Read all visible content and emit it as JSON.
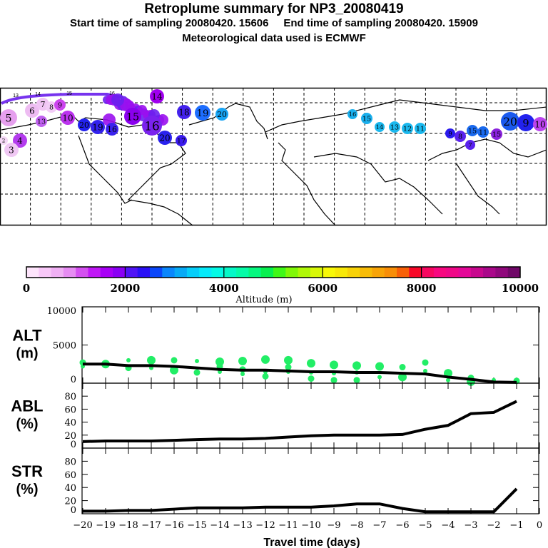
{
  "header": {
    "title": "Retroplume summary for NP3_20080419",
    "subtitle": "Start time of sampling 20080420. 15606     End time of sampling 20080420. 15909",
    "met_line": "Meteorological data used is ECMWF"
  },
  "map": {
    "markers": [
      {
        "label": "5",
        "color": "#e6a0ee"
      },
      {
        "label": "6",
        "color": "#eebcf2"
      },
      {
        "label": "7",
        "color": "#f0c4f4"
      },
      {
        "label": "8",
        "color": "#f2ccf6"
      },
      {
        "label": "9",
        "color": "#cc44ee"
      },
      {
        "label": "10",
        "color": "#bb33ee"
      },
      {
        "label": "4",
        "color": "#b43cee"
      },
      {
        "label": "3",
        "color": "#f0c8f4"
      },
      {
        "label": "2",
        "color": "#f4d8f6"
      },
      {
        "label": "13",
        "color": "#c060f0"
      },
      {
        "label": "14",
        "color": "#a000ee"
      },
      {
        "label": "18",
        "color": "#4422ee"
      },
      {
        "label": "19",
        "color": "#1e6eff"
      },
      {
        "label": "20",
        "color": "#18a4f4"
      },
      {
        "label": "20",
        "color": "#2222ee"
      },
      {
        "label": "19",
        "color": "#3322ee"
      },
      {
        "label": "16",
        "color": "#3a22ee"
      },
      {
        "label": "20",
        "color": "#2a22ee"
      },
      {
        "label": "16",
        "color": "#7a22ee"
      },
      {
        "label": "17",
        "color": "#3a1aee"
      },
      {
        "label": "15",
        "color": "#8a00ee"
      },
      {
        "label": "16",
        "color": "#1ab0ee"
      },
      {
        "label": "15",
        "color": "#1ab0ee"
      },
      {
        "label": "14",
        "color": "#1ab8ee"
      },
      {
        "label": "13",
        "color": "#1ab8ee"
      },
      {
        "label": "12",
        "color": "#1ab8ee"
      },
      {
        "label": "11",
        "color": "#1ab8ee"
      },
      {
        "label": "9",
        "color": "#2a1aee"
      },
      {
        "label": "8",
        "color": "#5a22ee"
      },
      {
        "label": "7",
        "color": "#5a22ee"
      },
      {
        "label": "15",
        "color": "#1a6aee"
      },
      {
        "label": "11",
        "color": "#1a6aee"
      },
      {
        "label": "20",
        "color": "#1a5aee"
      },
      {
        "label": "9",
        "color": "#2222ee"
      },
      {
        "label": "15",
        "color": "#8a22dd"
      },
      {
        "label": "10",
        "color": "#bb44ee"
      }
    ],
    "track_labels": [
      "13",
      "14",
      "15",
      "16"
    ]
  },
  "colorbar": {
    "title": "Altitude (m)",
    "ticks": [
      "0",
      "2000",
      "4000",
      "6000",
      "8000",
      "10000"
    ],
    "colors": [
      "#fde4fb",
      "#f8c8f8",
      "#f0b0f4",
      "#e68cf2",
      "#d450f0",
      "#c018f6",
      "#a800f6",
      "#8a00f4",
      "#5014f6",
      "#2a10f6",
      "#0a46fa",
      "#0a86fc",
      "#08aaf6",
      "#06cefa",
      "#06eafa",
      "#04fae6",
      "#06f8c8",
      "#06fca8",
      "#06f880",
      "#08f050",
      "#40f818",
      "#80f808",
      "#b0f808",
      "#d8f808",
      "#f8f808",
      "#f8e808",
      "#f8d208",
      "#f8bc08",
      "#f8a408",
      "#f88e08",
      "#f86008",
      "#f80828",
      "#f80860",
      "#f80880",
      "#f00888",
      "#e40898",
      "#c8088e",
      "#aa088a",
      "#90087c",
      "#700868"
    ]
  },
  "chart_data": [
    {
      "type": "line",
      "panel": "ALT",
      "ylabel": "ALT\n(m)",
      "ylabel_lines": [
        "ALT",
        "(m)"
      ],
      "yticks": [
        "0",
        "5000",
        "10000"
      ],
      "ylim": [
        0,
        10000
      ],
      "x": [
        -20,
        -19,
        -18,
        -17,
        -16,
        -15,
        -14,
        -13,
        -12,
        -11,
        -10,
        -9,
        -8,
        -7,
        -6,
        -5,
        -4,
        -3,
        -2,
        -1
      ],
      "values": [
        2500,
        2500,
        2300,
        2300,
        2200,
        2000,
        1800,
        1700,
        1700,
        1600,
        1500,
        1500,
        1400,
        1400,
        1300,
        1200,
        800,
        500,
        150,
        100
      ],
      "scatter_color": "#22ee66",
      "scatter": [
        [
          -20,
          2200
        ],
        [
          -20,
          2700
        ],
        [
          -19,
          2500
        ],
        [
          -18,
          3000
        ],
        [
          -18,
          2000
        ],
        [
          -17,
          3000
        ],
        [
          -17,
          2000
        ],
        [
          -16,
          3000
        ],
        [
          -16,
          1700
        ],
        [
          -15,
          2900
        ],
        [
          -15,
          1400
        ],
        [
          -14,
          2800
        ],
        [
          -14,
          1500
        ],
        [
          -14,
          2200
        ],
        [
          -13,
          2900
        ],
        [
          -13,
          1200
        ],
        [
          -13,
          1800
        ],
        [
          -12,
          3100
        ],
        [
          -12,
          1500
        ],
        [
          -12,
          900
        ],
        [
          -11,
          3000
        ],
        [
          -11,
          1500
        ],
        [
          -11,
          2100
        ],
        [
          -10,
          2600
        ],
        [
          -10,
          1400
        ],
        [
          -10,
          600
        ],
        [
          -9,
          2400
        ],
        [
          -9,
          1300
        ],
        [
          -9,
          400
        ],
        [
          -8,
          2300
        ],
        [
          -8,
          1400
        ],
        [
          -8,
          400
        ],
        [
          -7,
          2200
        ],
        [
          -7,
          800
        ],
        [
          -6,
          2100
        ],
        [
          -6,
          800
        ],
        [
          -5,
          1600
        ],
        [
          -5,
          2700
        ],
        [
          -4,
          1300
        ],
        [
          -4,
          400
        ],
        [
          -3,
          700
        ],
        [
          -3,
          200
        ],
        [
          -2,
          400
        ],
        [
          -1,
          300
        ]
      ]
    },
    {
      "type": "line",
      "panel": "ABL",
      "ylabel_lines": [
        "ABL",
        "(%)"
      ],
      "yticks": [
        "0",
        "20",
        "40",
        "60",
        "80"
      ],
      "ylim": [
        0,
        100
      ],
      "x": [
        -20,
        -19,
        -18,
        -17,
        -16,
        -15,
        -14,
        -13,
        -12,
        -11,
        -10,
        -9,
        -8,
        -7,
        -6,
        -5,
        -4,
        -3,
        -2,
        -1
      ],
      "values": [
        10,
        11,
        11,
        11,
        12,
        13,
        14,
        14,
        15,
        17,
        19,
        20,
        20,
        20,
        21,
        29,
        35,
        53,
        55,
        72
      ]
    },
    {
      "type": "line",
      "panel": "STR",
      "ylabel_lines": [
        "STR",
        "(%)"
      ],
      "yticks": [
        "0",
        "20",
        "40",
        "60",
        "80"
      ],
      "ylim": [
        0,
        100
      ],
      "x": [
        -20,
        -19,
        -18,
        -17,
        -16,
        -15,
        -14,
        -13,
        -12,
        -11,
        -10,
        -9,
        -8,
        -7,
        -6,
        -5,
        -4,
        -3,
        -2,
        -1
      ],
      "values": [
        4,
        4,
        5,
        5,
        7,
        9,
        9,
        9,
        10,
        10,
        10,
        12,
        15,
        15,
        8,
        3,
        3,
        3,
        3,
        38
      ],
      "xlabel": "Travel time (days)",
      "xticks": [
        "-20",
        "-19",
        "-18",
        "-17",
        "-16",
        "-15",
        "-14",
        "-13",
        "-12",
        "-11",
        "-10",
        "-9",
        "-8",
        "-7",
        "-6",
        "-5",
        "-4",
        "-3",
        "-2",
        "-1",
        "0"
      ],
      "xlim": [
        -20,
        0
      ]
    }
  ]
}
